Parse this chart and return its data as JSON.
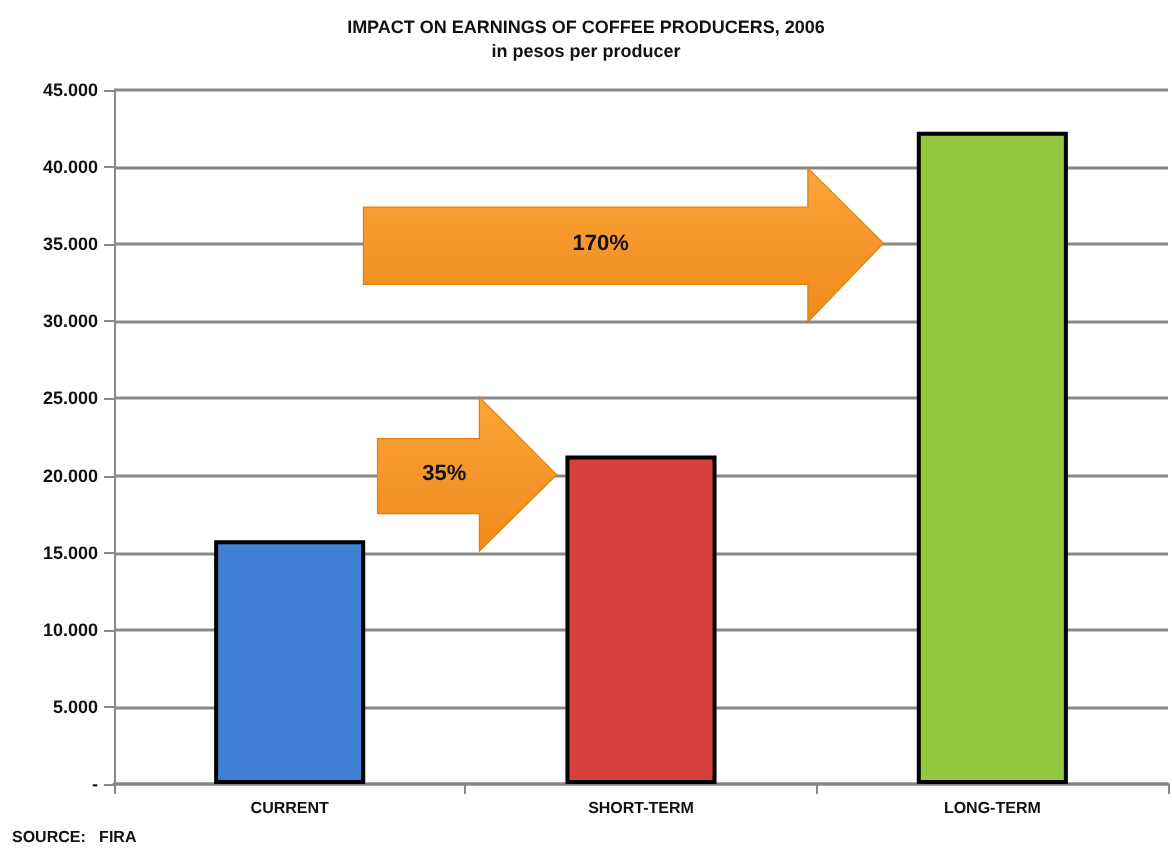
{
  "chart_data": {
    "type": "bar",
    "title": "IMPACT ON EARNINGS OF COFFEE PRODUCERS, 2006",
    "subtitle": "in pesos per producer",
    "categories": [
      "CURRENT",
      "SHORT-TERM",
      "LONG-TERM"
    ],
    "values": [
      15800,
      21300,
      42300
    ],
    "colors": [
      "#3f7fd4",
      "#d8403d",
      "#94c83f"
    ],
    "ylim": [
      0,
      45000
    ],
    "yticks": [
      {
        "value": 0,
        "label": "-"
      },
      {
        "value": 5000,
        "label": "5.000"
      },
      {
        "value": 10000,
        "label": "10.000"
      },
      {
        "value": 15000,
        "label": "15.000"
      },
      {
        "value": 20000,
        "label": "20.000"
      },
      {
        "value": 25000,
        "label": "25.000"
      },
      {
        "value": 30000,
        "label": "30.000"
      },
      {
        "value": 35000,
        "label": "35.000"
      },
      {
        "value": 40000,
        "label": "40.000"
      },
      {
        "value": 45000,
        "label": "45.000"
      }
    ],
    "grid": "y",
    "annotations": [
      "35%",
      "170%",
      "SOURCE:   FIRA"
    ]
  }
}
